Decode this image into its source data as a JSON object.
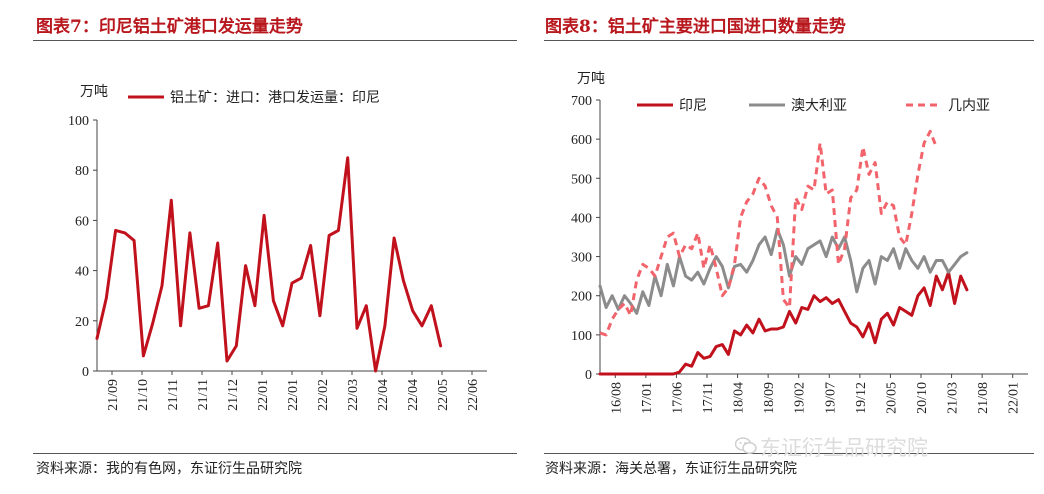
{
  "left": {
    "title": "图表7：印尼铝土矿港口发运量走势",
    "source": "资料来源：我的有色网，东证衍生品研究院"
  },
  "right": {
    "title": "图表8：铝土矿主要进口国进口数量走势",
    "source": "资料来源：海关总署，东证衍生品研究院"
  },
  "watermark": "东证衍生品研究院",
  "chart_data": [
    {
      "type": "line",
      "unit_label": "万吨",
      "ylim": [
        0,
        100
      ],
      "yticks": [
        0,
        20,
        40,
        60,
        80,
        100
      ],
      "tick_labels": [
        "21/09",
        "21/10",
        "21/11",
        "21/11",
        "21/12",
        "22/01",
        "22/01",
        "22/02",
        "22/03",
        "22/04",
        "22/04",
        "22/05",
        "22/06"
      ],
      "x_range": [
        0,
        42
      ],
      "legend_position": "top",
      "series": [
        {
          "name": "铝土矿：进口：港口发运量：印尼",
          "color": "#c0111c",
          "values": [
            13,
            29,
            56,
            55,
            52,
            6,
            19,
            34,
            68,
            18,
            55,
            25,
            26,
            51,
            4,
            10,
            42,
            26,
            62,
            28,
            18,
            35,
            37,
            50,
            22,
            54,
            56,
            85,
            17,
            26,
            0,
            18,
            53,
            36,
            24,
            18,
            26,
            10
          ]
        }
      ]
    },
    {
      "type": "line",
      "unit_label": "万吨",
      "ylim": [
        0,
        700
      ],
      "yticks": [
        0,
        100,
        200,
        300,
        400,
        500,
        600,
        700
      ],
      "tick_labels": [
        "16/08",
        "17/01",
        "17/06",
        "17/11",
        "18/04",
        "18/09",
        "19/02",
        "19/07",
        "19/12",
        "20/05",
        "20/10",
        "21/03",
        "21/08",
        "22/01"
      ],
      "x_range": [
        0,
        70
      ],
      "legend_position": "top",
      "series": [
        {
          "name": "印尼",
          "color": "#c0111c",
          "style": "solid",
          "values": [
            0,
            0,
            0,
            0,
            0,
            0,
            0,
            0,
            0,
            0,
            0,
            0,
            0,
            5,
            25,
            20,
            55,
            40,
            45,
            70,
            75,
            50,
            110,
            100,
            125,
            105,
            140,
            110,
            115,
            115,
            120,
            160,
            130,
            170,
            165,
            200,
            185,
            195,
            180,
            190,
            160,
            130,
            120,
            95,
            130,
            80,
            140,
            155,
            125,
            170,
            160,
            150,
            200,
            220,
            175,
            250,
            215,
            260,
            180,
            250,
            215
          ]
        },
        {
          "name": "澳大利亚",
          "color": "#8c8c8c",
          "style": "solid",
          "values": [
            225,
            170,
            200,
            165,
            200,
            180,
            155,
            210,
            175,
            250,
            200,
            280,
            225,
            300,
            250,
            240,
            260,
            230,
            270,
            300,
            275,
            220,
            275,
            280,
            260,
            290,
            330,
            350,
            305,
            370,
            330,
            250,
            300,
            280,
            320,
            330,
            340,
            300,
            350,
            320,
            350,
            290,
            210,
            270,
            290,
            230,
            300,
            290,
            320,
            270,
            320,
            290,
            270,
            300,
            260,
            290,
            290,
            260,
            280,
            300,
            310
          ]
        },
        {
          "name": "几内亚",
          "color": "#f2646c",
          "style": "dashed",
          "values": [
            105,
            100,
            140,
            165,
            180,
            150,
            240,
            280,
            270,
            250,
            300,
            350,
            360,
            300,
            330,
            320,
            360,
            270,
            330,
            270,
            200,
            220,
            280,
            400,
            440,
            460,
            500,
            480,
            430,
            400,
            190,
            170,
            450,
            420,
            480,
            470,
            590,
            460,
            470,
            280,
            320,
            450,
            470,
            580,
            510,
            540,
            410,
            440,
            430,
            350,
            330,
            410,
            510,
            590,
            620,
            580
          ]
        }
      ]
    }
  ]
}
